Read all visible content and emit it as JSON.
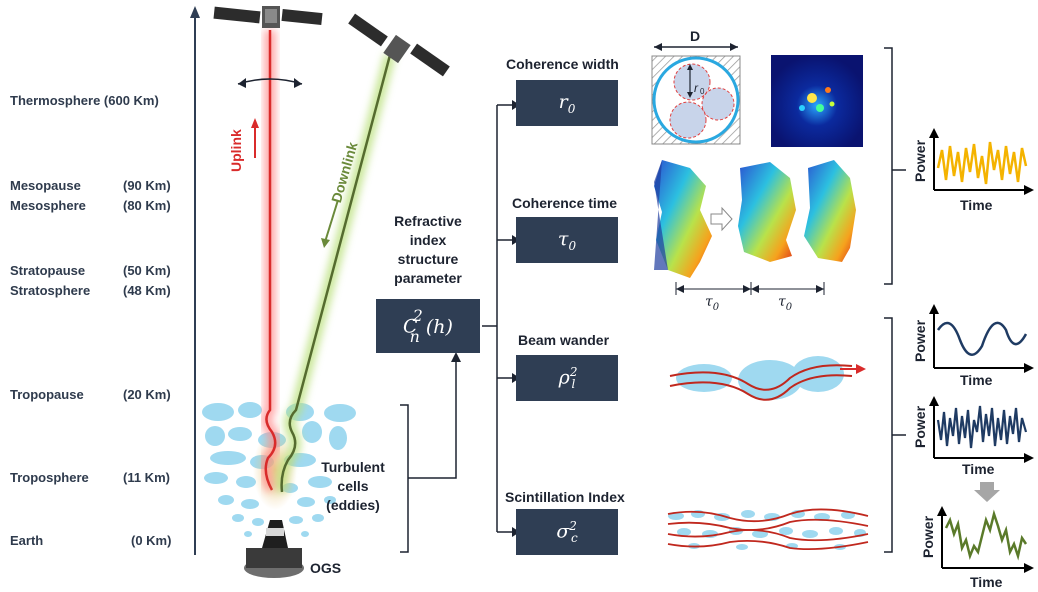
{
  "atmosphere": {
    "layers": [
      {
        "name": "Thermosphere (600 Km)",
        "alt": ""
      },
      {
        "name": "Mesopause",
        "alt": "(90 Km)"
      },
      {
        "name": "Mesosphere",
        "alt": "(80 Km)"
      },
      {
        "name": "Stratopause",
        "alt": "(50 Km)"
      },
      {
        "name": "Stratosphere",
        "alt": "(48 Km)"
      },
      {
        "name": "Tropopause",
        "alt": "(20 Km)"
      },
      {
        "name": "Troposphere",
        "alt": "(11 Km)"
      },
      {
        "name": "Earth",
        "alt": "(0 Km)"
      }
    ]
  },
  "links": {
    "uplink": "Uplink",
    "downlink": "Downlink",
    "ogs": "OGS"
  },
  "turbulence": {
    "label_line1": "Turbulent",
    "label_line2": "cells",
    "label_line3": "(eddies)"
  },
  "center": {
    "line1": "Refractive",
    "line2": "index",
    "line3": "structure",
    "line4": "parameter"
  },
  "parameters": [
    {
      "title": "Coherence width"
    },
    {
      "title": "Coherence time"
    },
    {
      "title": "Beam wander"
    },
    {
      "title": "Scintillation Index"
    }
  ],
  "figure_labels": {
    "d_label": "D"
  },
  "plots": {
    "power": "Power",
    "time": "Time"
  },
  "colors": {
    "box": "#2f3e54",
    "uplink": "#d92b2b",
    "downlink": "#8fbf45",
    "cells": "#9fd9f0",
    "power_yellow": "#f4b300",
    "power_blue": "#1f3b63",
    "power_green": "#5a7a2a"
  }
}
